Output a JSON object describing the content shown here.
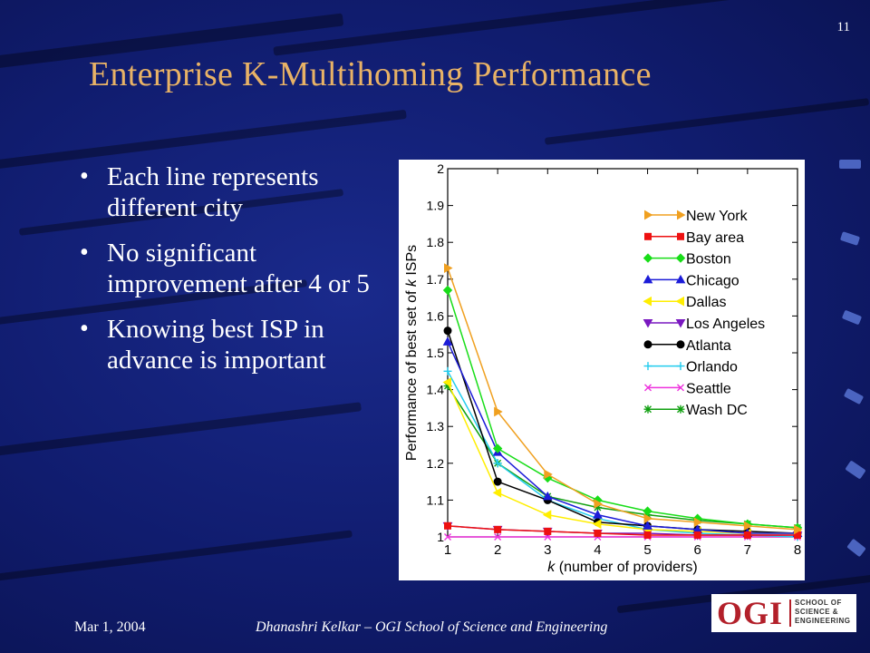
{
  "slide": {
    "number": "11",
    "title": "Enterprise K-Multihoming Performance",
    "bullets": [
      "Each line represents different city",
      "No significant improvement after 4 or 5",
      "Knowing best ISP in advance is important"
    ],
    "footer_date": "Mar 1, 2004",
    "footer_author": "Dhanashri Kelkar – OGI School of Science and Engineering",
    "logo": {
      "letters": "OGI",
      "subtext_lines": [
        "SCHOOL OF",
        "SCIENCE &",
        "ENGINEERING"
      ],
      "brand_color": "#b3202a"
    },
    "background_color": "#101c6e",
    "title_color": "#e8b266"
  },
  "chart_data": {
    "type": "line",
    "xlabel_italic": "k",
    "xlabel_rest": " (number of providers)",
    "ylabel_rest": "Performance of best set of ",
    "ylabel_italic": "k",
    "ylabel_end": " ISPs",
    "xlim": [
      1,
      8
    ],
    "ylim": [
      1,
      2
    ],
    "xticks": [
      "1",
      "2",
      "3",
      "4",
      "5",
      "6",
      "7",
      "8"
    ],
    "yticks": [
      "1",
      "1.1",
      "1.2",
      "1.3",
      "1.4",
      "1.5",
      "1.6",
      "1.7",
      "1.8",
      "1.9",
      "2"
    ],
    "legend_position": "top-right",
    "x": [
      1,
      2,
      3,
      4,
      5,
      6,
      7,
      8
    ],
    "series": [
      {
        "name": "New York",
        "color": "#f0a020",
        "marker": "triangle-right",
        "values": [
          1.73,
          1.34,
          1.17,
          1.09,
          1.05,
          1.04,
          1.03,
          1.02
        ]
      },
      {
        "name": "Bay area",
        "color": "#ee1111",
        "marker": "square",
        "values": [
          1.03,
          1.02,
          1.015,
          1.01,
          1.005,
          1.005,
          1.005,
          1.005
        ]
      },
      {
        "name": "Boston",
        "color": "#18dd18",
        "marker": "diamond",
        "values": [
          1.67,
          1.24,
          1.16,
          1.1,
          1.07,
          1.05,
          1.035,
          1.025
        ]
      },
      {
        "name": "Chicago",
        "color": "#1c1cd8",
        "marker": "triangle-up",
        "values": [
          1.53,
          1.23,
          1.11,
          1.06,
          1.03,
          1.02,
          1.01,
          1.01
        ]
      },
      {
        "name": "Dallas",
        "color": "#ffee00",
        "marker": "triangle-left",
        "values": [
          1.42,
          1.12,
          1.06,
          1.035,
          1.02,
          1.015,
          1.01,
          1.01
        ]
      },
      {
        "name": "Los Angeles",
        "color": "#7a18c0",
        "marker": "triangle-down",
        "values": [
          1.03,
          1.02,
          1.015,
          1.01,
          1.01,
          1.005,
          1.005,
          1.005
        ]
      },
      {
        "name": "Atlanta",
        "color": "#000000",
        "marker": "circle",
        "values": [
          1.56,
          1.15,
          1.1,
          1.04,
          1.03,
          1.02,
          1.015,
          1.01
        ]
      },
      {
        "name": "Orlando",
        "color": "#22ccee",
        "marker": "plus",
        "values": [
          1.45,
          1.2,
          1.1,
          1.05,
          1.02,
          1.01,
          1.005,
          1.0
        ]
      },
      {
        "name": "Seattle",
        "color": "#ee33dd",
        "marker": "cross",
        "values": [
          1.0,
          1.0,
          1.0,
          1.0,
          1.0,
          1.0,
          1.0,
          1.0
        ]
      },
      {
        "name": "Wash DC",
        "color": "#10a010",
        "marker": "star",
        "values": [
          1.41,
          1.2,
          1.11,
          1.08,
          1.06,
          1.045,
          1.035,
          1.025
        ]
      }
    ]
  }
}
